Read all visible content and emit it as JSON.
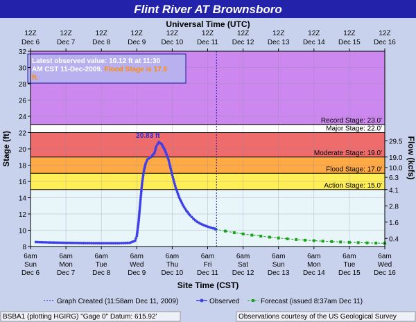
{
  "title": "Flint River  AT Brownsboro",
  "top_axis_title": "Universal Time (UTC)",
  "bottom_axis_title": "Site Time (CST)",
  "y_axis_title": "Stage (ft)",
  "y2_axis_title": "Flow (kcfs)",
  "info_box": {
    "line1": "Latest observed value: 10.12 ft at 11:30",
    "line2a": "AM CST 11-Dec-2009. ",
    "line2b": "Flood Stage is 17.0",
    "line3": "ft."
  },
  "peak_label": "20.83 ft",
  "legend": {
    "created": "Graph Created (11:58am Dec 11, 2009)",
    "observed": "Observed",
    "forecast": "Forecast (issued 8:37am Dec 11)"
  },
  "footer": {
    "left": "BSBA1 (plotting HGIRG)  \"Gage 0\" Datum: 615.92'",
    "right": "Observations courtesy of the  US Geological Survey"
  },
  "colors": {
    "observed": "#3f3fe8",
    "forecast": "#1aa01a",
    "record_band": "#cc88ee",
    "major_band": "#ee6c6c",
    "moderate_band": "#ffaa44",
    "flood_band": "#ffee55",
    "normal_band": "#e8f6fa"
  },
  "chart_data": {
    "type": "line",
    "ylim": [
      8,
      32
    ],
    "y_ticks": [
      "8",
      "10",
      "12",
      "14",
      "16",
      "18",
      "20",
      "22",
      "24",
      "26",
      "28",
      "30",
      "32"
    ],
    "y2_ticks": [
      {
        "stage": 9,
        "label": "0.4"
      },
      {
        "stage": 11,
        "label": "1.6"
      },
      {
        "stage": 13,
        "label": "2.8"
      },
      {
        "stage": 15,
        "label": "4.1"
      },
      {
        "stage": 16.5,
        "label": "6.3"
      },
      {
        "stage": 17.7,
        "label": "10.0"
      },
      {
        "stage": 19,
        "label": "19.0"
      },
      {
        "stage": 21,
        "label": "29.5"
      }
    ],
    "x_days": 10,
    "top_ticks": [
      {
        "l1": "12Z",
        "l2": "Dec 6"
      },
      {
        "l1": "12Z",
        "l2": "Dec 7"
      },
      {
        "l1": "12Z",
        "l2": "Dec 8"
      },
      {
        "l1": "12Z",
        "l2": "Dec 9"
      },
      {
        "l1": "12Z",
        "l2": "Dec 10"
      },
      {
        "l1": "12Z",
        "l2": "Dec 11"
      },
      {
        "l1": "12Z",
        "l2": "Dec 12"
      },
      {
        "l1": "12Z",
        "l2": "Dec 13"
      },
      {
        "l1": "12Z",
        "l2": "Dec 14"
      },
      {
        "l1": "12Z",
        "l2": "Dec 15"
      },
      {
        "l1": "12Z",
        "l2": "Dec 16"
      }
    ],
    "bottom_ticks": [
      {
        "l1": "6am",
        "l2": "Sun",
        "l3": "Dec 6"
      },
      {
        "l1": "6am",
        "l2": "Mon",
        "l3": "Dec 7"
      },
      {
        "l1": "6am",
        "l2": "Tue",
        "l3": "Dec 8"
      },
      {
        "l1": "6am",
        "l2": "Wed",
        "l3": "Dec 9"
      },
      {
        "l1": "6am",
        "l2": "Thu",
        "l3": "Dec 10"
      },
      {
        "l1": "6am",
        "l2": "Fri",
        "l3": "Dec 11"
      },
      {
        "l1": "6am",
        "l2": "Sat",
        "l3": "Dec 12"
      },
      {
        "l1": "6am",
        "l2": "Sun",
        "l3": "Dec 13"
      },
      {
        "l1": "6am",
        "l2": "Mon",
        "l3": "Dec 14"
      },
      {
        "l1": "6am",
        "l2": "Tue",
        "l3": "Dec 15"
      },
      {
        "l1": "6am",
        "l2": "Wed",
        "l3": "Dec 16"
      }
    ],
    "stages": [
      {
        "name": "record",
        "label": "Record Stage: 23.0'",
        "value": 23.0
      },
      {
        "name": "major",
        "label": "Major Stage: 22.0'",
        "value": 22.0
      },
      {
        "name": "moderate",
        "label": "Moderate Stage: 19.0'",
        "value": 19.0
      },
      {
        "name": "flood",
        "label": "Flood Stage: 17.0'",
        "value": 17.0
      },
      {
        "name": "action",
        "label": "Action Stage: 15.0'",
        "value": 15.0
      }
    ],
    "graph_created_x": 5.25,
    "peak": {
      "x": 3.55,
      "y": 20.83
    },
    "observed": [
      [
        0.15,
        8.55
      ],
      [
        0.5,
        8.5
      ],
      [
        1.0,
        8.45
      ],
      [
        1.5,
        8.42
      ],
      [
        2.0,
        8.4
      ],
      [
        2.5,
        8.4
      ],
      [
        2.8,
        8.45
      ],
      [
        2.95,
        8.7
      ],
      [
        3.0,
        9.3
      ],
      [
        3.05,
        11.0
      ],
      [
        3.1,
        13.5
      ],
      [
        3.15,
        15.8
      ],
      [
        3.2,
        17.3
      ],
      [
        3.25,
        18.2
      ],
      [
        3.3,
        18.7
      ],
      [
        3.4,
        19.0
      ],
      [
        3.5,
        19.5
      ],
      [
        3.55,
        20.3
      ],
      [
        3.62,
        20.83
      ],
      [
        3.7,
        20.6
      ],
      [
        3.8,
        19.8
      ],
      [
        3.9,
        18.6
      ],
      [
        4.0,
        16.8
      ],
      [
        4.1,
        15.2
      ],
      [
        4.2,
        14.0
      ],
      [
        4.3,
        13.1
      ],
      [
        4.4,
        12.4
      ],
      [
        4.5,
        11.85
      ],
      [
        4.6,
        11.4
      ],
      [
        4.7,
        11.05
      ],
      [
        4.8,
        10.8
      ],
      [
        4.9,
        10.6
      ],
      [
        5.0,
        10.45
      ],
      [
        5.1,
        10.3
      ],
      [
        5.2,
        10.2
      ],
      [
        5.23,
        10.12
      ]
    ],
    "forecast": [
      [
        5.23,
        10.12
      ],
      [
        5.5,
        9.9
      ],
      [
        5.75,
        9.7
      ],
      [
        6.0,
        9.55
      ],
      [
        6.25,
        9.4
      ],
      [
        6.5,
        9.28
      ],
      [
        6.75,
        9.15
      ],
      [
        7.0,
        9.05
      ],
      [
        7.25,
        8.95
      ],
      [
        7.5,
        8.86
      ],
      [
        7.75,
        8.78
      ],
      [
        8.0,
        8.72
      ],
      [
        8.25,
        8.66
      ],
      [
        8.5,
        8.61
      ],
      [
        8.75,
        8.56
      ],
      [
        9.0,
        8.52
      ],
      [
        9.25,
        8.48
      ],
      [
        9.5,
        8.45
      ],
      [
        9.75,
        8.42
      ],
      [
        10.0,
        8.4
      ]
    ]
  }
}
